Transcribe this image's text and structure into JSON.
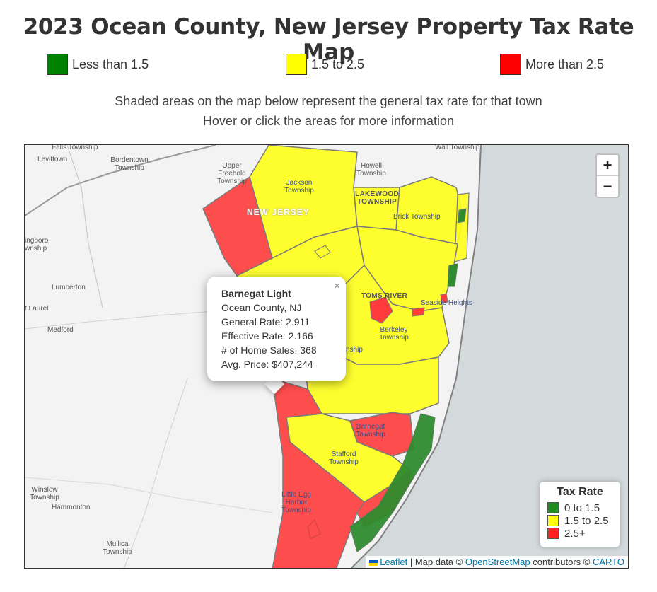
{
  "title": "2023 Ocean County, New Jersey Property Tax Rate Map",
  "legend_top": [
    {
      "label": "Less than 1.5",
      "color": "#008000"
    },
    {
      "label": "1.5 to 2.5",
      "color": "#ffff00"
    },
    {
      "label": "More than 2.5",
      "color": "#ff0000"
    }
  ],
  "description": {
    "line1": "Shaded areas on the map below represent the general tax rate for that town",
    "line2": "Hover or click the areas for more information"
  },
  "zoom": {
    "in": "+",
    "out": "−"
  },
  "popup": {
    "title": "Barnegat Light",
    "county": "Ocean County, NJ",
    "general_rate": "General Rate: 2.911",
    "effective_rate": "Effective Rate: 2.166",
    "home_sales": "# of Home Sales: 368",
    "avg_price": "Avg. Price: $407,244",
    "close": "×"
  },
  "map_legend": {
    "title": "Tax Rate",
    "items": [
      {
        "label": "0 to 1.5",
        "color": "#1e8c1e"
      },
      {
        "label": "1.5 to 2.5",
        "color": "#ffff00"
      },
      {
        "label": "2.5+",
        "color": "#ff2020"
      }
    ]
  },
  "attribution": {
    "leaflet": "Leaflet",
    "sep": " | Map data © ",
    "osm": "OpenStreetMap",
    "contrib": " contributors © ",
    "carto": "CARTO"
  },
  "places": {
    "falls": "Falls Township",
    "wall": "Wall Township",
    "levittown": "Levittown",
    "bordentown": "Bordentown Township",
    "upper_freehold": "Upper Freehold Township",
    "jackson": "Jackson Township",
    "howell": "Howell Township",
    "lakewood": "LAKEWOOD TOWNSHIP",
    "brick": "Brick Township",
    "new_jersey": "NEW JERSEY",
    "willingboro": "ingboro wnship",
    "lumberton": "Lumberton",
    "mt_laurel": "t Laurel",
    "medford": "Medford",
    "toms_river": "TOMS RIVER",
    "seaside": "Seaside Heights",
    "berkeley": "Berkeley Township",
    "manchester_frag": "nship",
    "barnegat": "Barnegat Township",
    "stafford": "Stafford Township",
    "little_egg": "Little Egg Harbor Township",
    "winslow": "Winslow Township",
    "hammonton": "Hammonton",
    "mullica": "Mullica Township"
  },
  "colors": {
    "green": "#2e8b2e",
    "yellow": "#ffff1a",
    "red": "#ff3b3b",
    "ocean": "#d4dadc",
    "land": "#f2f3f2"
  }
}
